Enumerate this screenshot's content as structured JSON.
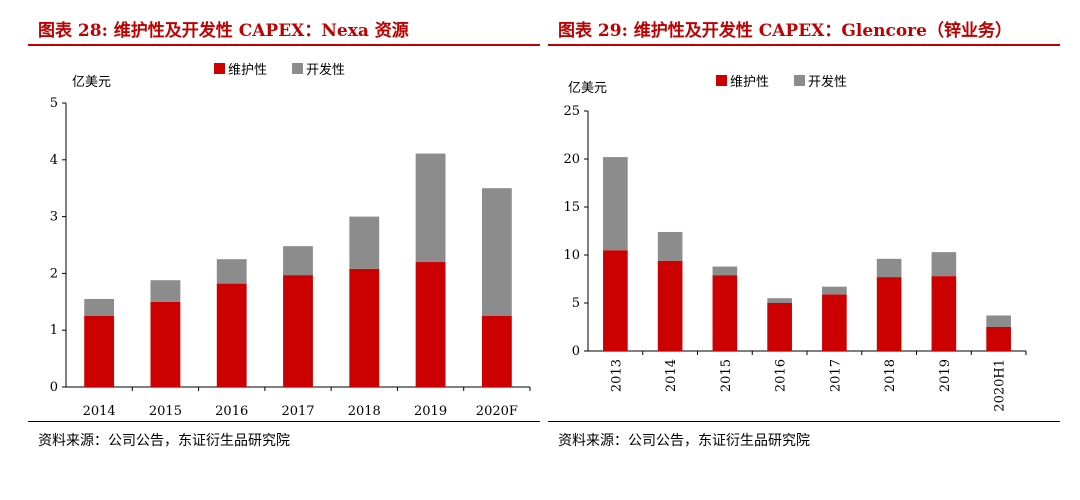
{
  "source_text": "资料来源：公司公告，东证衍生品研究院",
  "colors": {
    "maintenance": "#cc0000",
    "development": "#8c8c8c",
    "title": "#c00000"
  },
  "chart_data": [
    {
      "type": "bar",
      "stacked": true,
      "title": "图表 28:    维护性及开发性 CAPEX：Nexa 资源",
      "unit_label": "亿美元",
      "categories": [
        "2014",
        "2015",
        "2016",
        "2017",
        "2018",
        "2019",
        "2020F"
      ],
      "series": [
        {
          "name": "维护性",
          "values": [
            1.25,
            1.5,
            1.82,
            1.97,
            2.08,
            2.2,
            1.25
          ]
        },
        {
          "name": "开发性",
          "values": [
            0.3,
            0.38,
            0.43,
            0.51,
            0.92,
            1.91,
            2.25
          ]
        }
      ],
      "ylim": [
        0,
        5
      ],
      "yticks": [
        0,
        1,
        2,
        3,
        4,
        5
      ],
      "legend": "top-center",
      "xlabel_rotation": 0,
      "grid": false
    },
    {
      "type": "bar",
      "stacked": true,
      "title": "图表 29:    维护性及开发性 CAPEX：Glencore（锌业务）",
      "unit_label": "亿美元",
      "categories": [
        "2013",
        "2014",
        "2015",
        "2016",
        "2017",
        "2018",
        "2019",
        "2020H1"
      ],
      "series": [
        {
          "name": "维护性",
          "values": [
            10.5,
            9.4,
            7.9,
            5.0,
            5.9,
            7.7,
            7.8,
            2.5
          ]
        },
        {
          "name": "开发性",
          "values": [
            9.7,
            3.0,
            0.9,
            0.5,
            0.8,
            1.9,
            2.5,
            1.2
          ]
        }
      ],
      "ylim": [
        0,
        25
      ],
      "yticks": [
        0,
        5,
        10,
        15,
        20,
        25
      ],
      "legend": "top-center",
      "xlabel_rotation": -90,
      "grid": false
    }
  ]
}
